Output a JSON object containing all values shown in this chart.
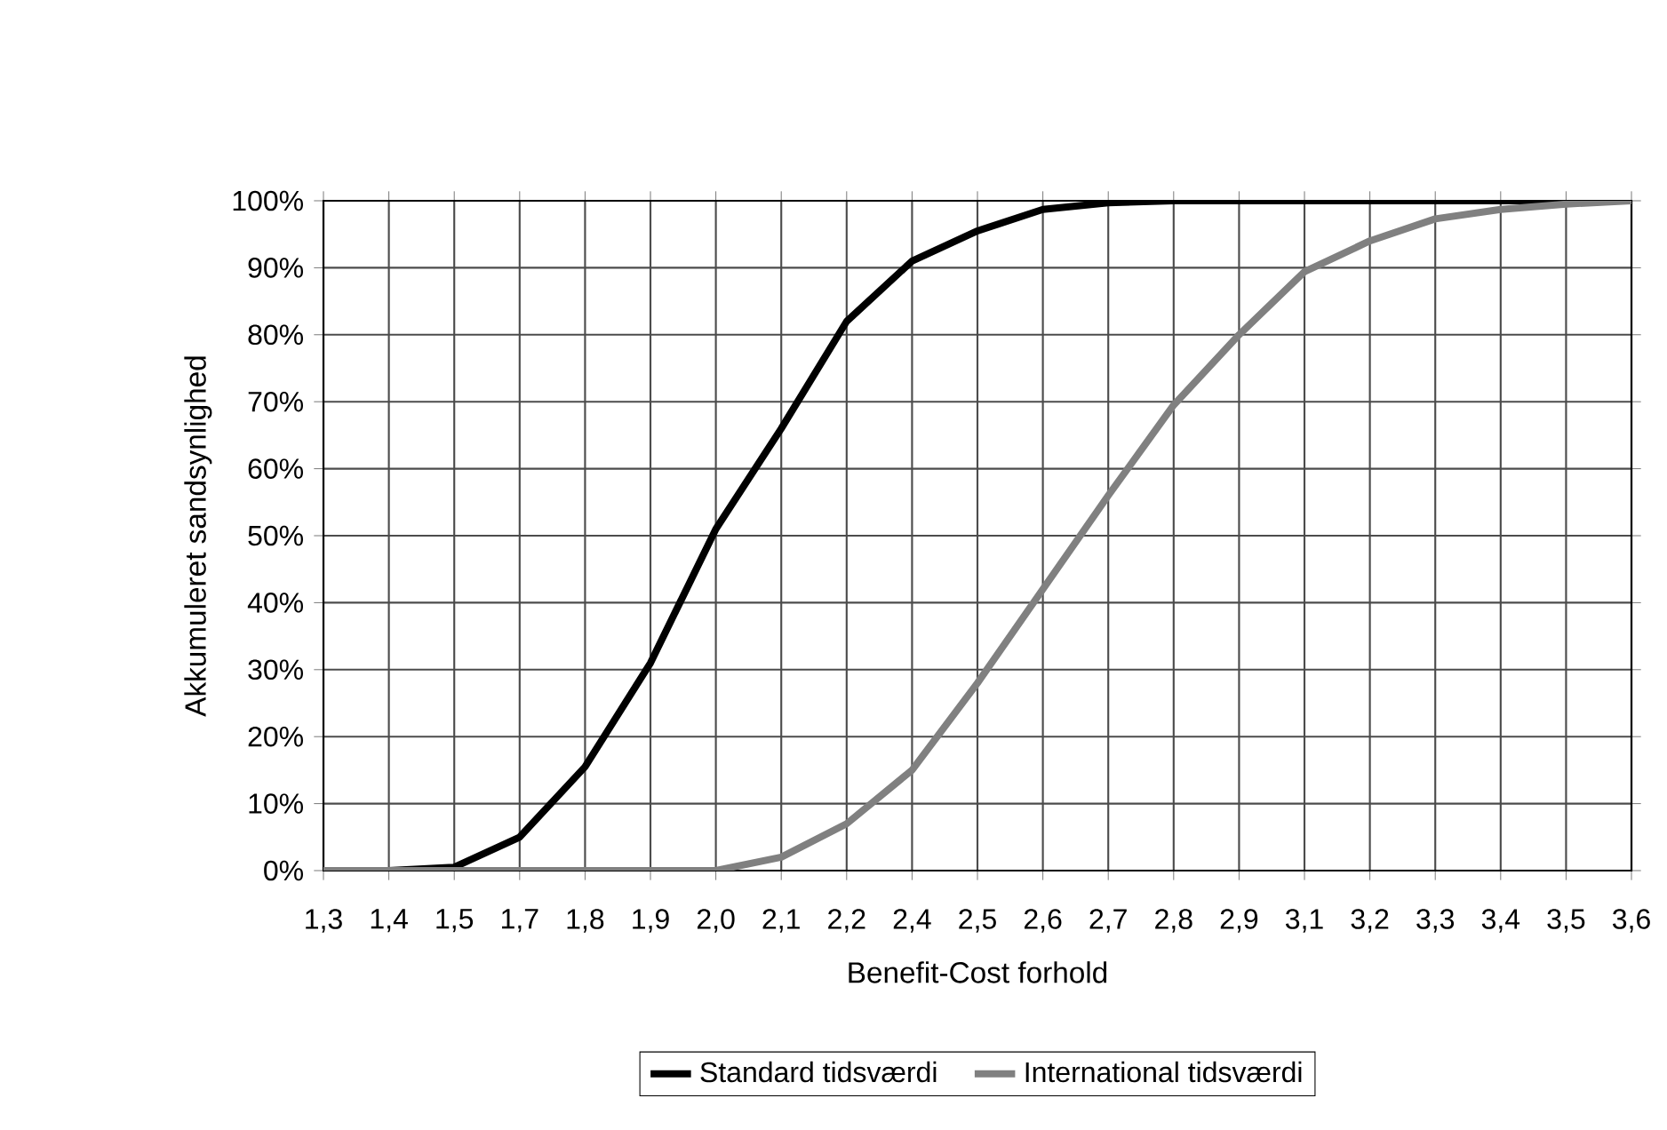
{
  "chart_data": {
    "type": "line",
    "xlabel": "Benefit-Cost forhold",
    "ylabel": "Akkumuleret sandsynlighed",
    "categories": [
      "1,3",
      "1,4",
      "1,5",
      "1,7",
      "1,8",
      "1,9",
      "2,0",
      "2,1",
      "2,2",
      "2,4",
      "2,5",
      "2,6",
      "2,7",
      "2,8",
      "2,9",
      "3,1",
      "3,2",
      "3,3",
      "3,4",
      "3,5",
      "3,6"
    ],
    "series": [
      {
        "name": "Standard tidsværdi",
        "color": "#000000",
        "values": [
          0,
          0,
          0.5,
          5,
          15.5,
          31,
          51,
          66,
          82,
          91,
          95.5,
          98.7,
          99.7,
          100,
          100,
          100,
          100,
          100,
          100,
          100,
          100
        ]
      },
      {
        "name": "International tidsværdi",
        "color": "#808080",
        "values": [
          0,
          0,
          0,
          0,
          0,
          0,
          0,
          2,
          7,
          15,
          28,
          42,
          56,
          69.5,
          80,
          89.4,
          94,
          97.3,
          98.7,
          99.5,
          100
        ]
      }
    ],
    "ylim": [
      0,
      100
    ],
    "yticks": [
      {
        "value": 0,
        "label": "0%"
      },
      {
        "value": 10,
        "label": "10%"
      },
      {
        "value": 20,
        "label": "20%"
      },
      {
        "value": 30,
        "label": "30%"
      },
      {
        "value": 40,
        "label": "40%"
      },
      {
        "value": 50,
        "label": "50%"
      },
      {
        "value": 60,
        "label": "60%"
      },
      {
        "value": 70,
        "label": "70%"
      },
      {
        "value": 80,
        "label": "80%"
      },
      {
        "value": 90,
        "label": "90%"
      },
      {
        "value": 100,
        "label": "100%"
      }
    ],
    "grid": true,
    "legend": "bottom",
    "marker": "none",
    "line_style": "solid"
  }
}
